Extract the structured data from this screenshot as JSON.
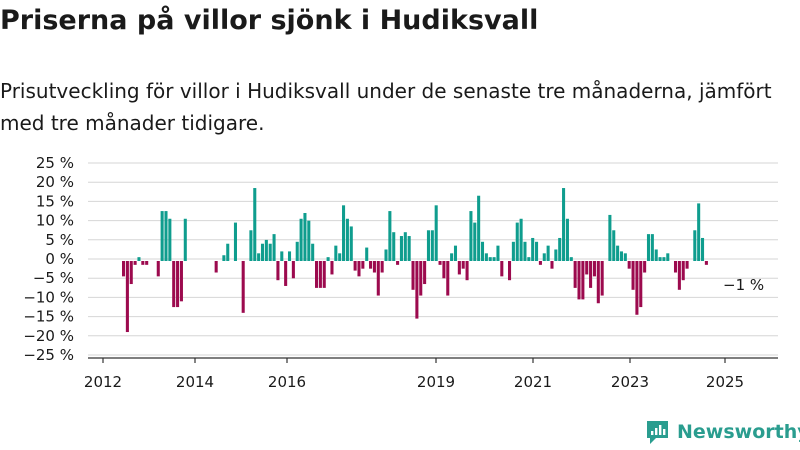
{
  "header": {
    "title": "Priserna på villor sjönk i Hudiksvall",
    "subtitle": "Prisutveckling för villor i Hudiksvall under de senaste tre månaderna, jämfört med tre månader tidigare."
  },
  "brand": {
    "name": "Newsworthy",
    "color": "#2a9d8f"
  },
  "colors": {
    "positive": "#0f9d8e",
    "negative": "#9c0a4e"
  },
  "chart_data": {
    "type": "bar",
    "x_tick_labels": [
      "2012",
      "2014",
      "2016",
      "2019",
      "2021",
      "2023",
      "2025"
    ],
    "y_tick_labels": [
      "25 %",
      "20 %",
      "15 %",
      "10 %",
      "5 %",
      "0 %",
      "−5 %",
      "−10 %",
      "−15 %",
      "−20 %",
      "−25 %"
    ],
    "ylim": [
      -25,
      25
    ],
    "grid": true,
    "annotation": "−1 %",
    "values": [
      -4,
      -18.5,
      -6,
      -1,
      1,
      -1,
      -1,
      null,
      null,
      -4,
      13,
      13,
      11,
      -12,
      -12,
      -10.5,
      11,
      null,
      null,
      null,
      null,
      null,
      null,
      null,
      -3,
      null,
      1.5,
      4.5,
      null,
      10,
      null,
      -13.5,
      null,
      8,
      19,
      2,
      4.5,
      5.5,
      4.5,
      7,
      -5,
      2.5,
      -6.5,
      2.5,
      -4.5,
      5,
      11,
      12.5,
      10.5,
      4.5,
      -7,
      -7,
      -7,
      1,
      -3.5,
      4,
      2,
      14.5,
      11,
      9,
      -2.5,
      -4,
      -2,
      3.5,
      -2,
      -3,
      -9,
      -3,
      3,
      13,
      7.5,
      -1,
      6.5,
      7.5,
      6.5,
      -7.5,
      -15,
      -9,
      -6,
      8,
      8,
      14.5,
      -1,
      -4.5,
      -9,
      2,
      4,
      -3.5,
      -2,
      -5,
      13,
      10,
      17,
      5,
      2,
      1,
      1,
      4,
      -4,
      null,
      -5,
      5,
      10,
      11,
      5,
      1,
      6,
      5,
      -1,
      2,
      4,
      -2,
      3,
      6,
      19,
      11,
      1,
      -7,
      -10,
      -10,
      -3.5,
      -7,
      -4,
      -11,
      -9,
      null,
      12,
      8,
      4,
      2.5,
      2,
      -2,
      -7.5,
      -14,
      -12,
      -3,
      7,
      7,
      3,
      1,
      1,
      2,
      null,
      -3,
      -7.5,
      -5,
      -2,
      null,
      8,
      15,
      6,
      -1
    ]
  }
}
